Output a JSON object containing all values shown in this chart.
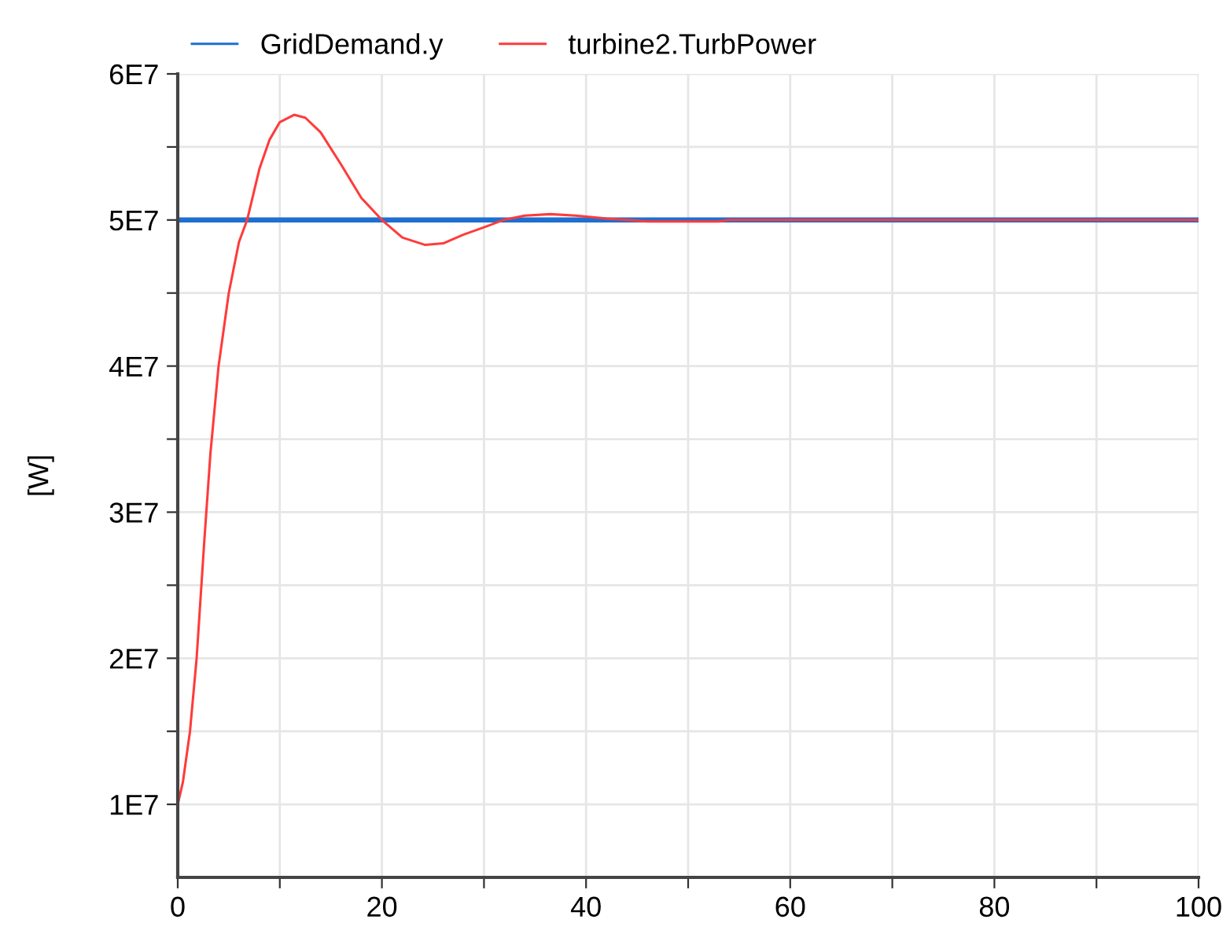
{
  "chart_data": {
    "type": "line",
    "ylabel": "[W]",
    "series": [
      {
        "name": "GridDemand.y",
        "color": "#1f6fd1",
        "x": [
          0,
          100
        ],
        "values": [
          50000000,
          50000000
        ]
      },
      {
        "name": "turbine2.TurbPower",
        "color": "#ff3b3b",
        "x": [
          0,
          0.5,
          1.2,
          1.85,
          2.6,
          3.2,
          4.0,
          5.0,
          6.0,
          6.8,
          8,
          9,
          10,
          11.4,
          12.5,
          14,
          16,
          18,
          20,
          22,
          24.2,
          26,
          28,
          30,
          31.9,
          34,
          36.5,
          39,
          42,
          44,
          46,
          53,
          54,
          100
        ],
        "values": [
          10000000,
          11500000,
          15000000,
          20000000,
          28000000,
          34000000,
          40000000,
          45000000,
          48500000,
          50000000,
          53500000,
          55500000,
          56700000,
          57200000,
          57000000,
          56000000,
          53800000,
          51500000,
          50000000,
          48800000,
          48300000,
          48400000,
          49000000,
          49500000,
          50000000,
          50300000,
          50400000,
          50300000,
          50100000,
          50000000,
          49900000,
          49900000,
          50000000,
          50000000
        ]
      }
    ],
    "xlim": [
      0,
      100
    ],
    "xticks": [
      0,
      {
        "value": 10,
        "label": null
      },
      20,
      {
        "value": 30,
        "label": null
      },
      40,
      {
        "value": 50,
        "label": null
      },
      60,
      {
        "value": 70,
        "label": null
      },
      80,
      {
        "value": 90,
        "label": null
      },
      100
    ],
    "ylim": [
      5000000,
      60000000
    ],
    "yticks": [
      {
        "value": 10000000,
        "label": "1E7"
      },
      {
        "value": 15000000,
        "label": null
      },
      {
        "value": 20000000,
        "label": "2E7"
      },
      {
        "value": 25000000,
        "label": null
      },
      {
        "value": 30000000,
        "label": "3E7"
      },
      {
        "value": 35000000,
        "label": null
      },
      {
        "value": 40000000,
        "label": "4E7"
      },
      {
        "value": 45000000,
        "label": null
      },
      {
        "value": 50000000,
        "label": "5E7"
      },
      {
        "value": 55000000,
        "label": null
      },
      {
        "value": 60000000,
        "label": "6E7"
      }
    ],
    "grid": true,
    "legend": "top",
    "marker": "none",
    "line_style": "solid"
  }
}
